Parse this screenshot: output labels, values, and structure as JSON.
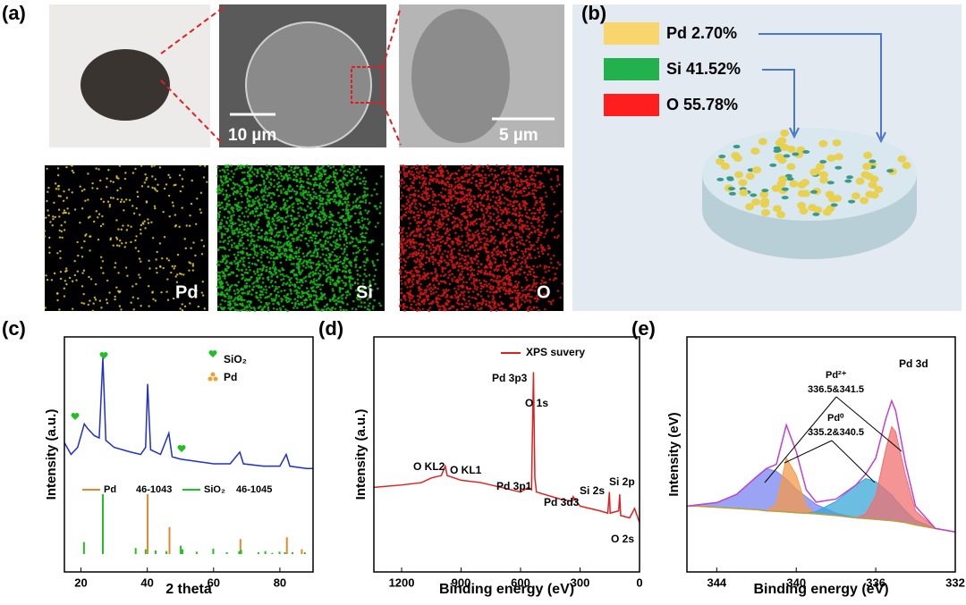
{
  "panel_a": {
    "label": "(a)",
    "scale_bars": [
      "10 µm",
      "5 µm"
    ],
    "maps": [
      "Pd",
      "Si",
      "O"
    ]
  },
  "panel_b": {
    "label": "(b)",
    "composition": [
      {
        "text": "Pd 2.70%",
        "color": "#f9d56e"
      },
      {
        "text": "Si 41.52%",
        "color": "#22b14c"
      },
      {
        "text": "O 55.78%",
        "color": "#ff1e1e"
      }
    ]
  },
  "chart_data": [
    {
      "type": "line",
      "label": "(c)",
      "ylabel": "Intensity (a.u.)",
      "xlabel": "2 theta",
      "xlim": [
        15,
        90
      ],
      "ylim": [
        0,
        100
      ],
      "xticks": [
        20,
        40,
        60,
        80
      ],
      "legend": [
        {
          "text": "SiO₂",
          "color": "#22c022"
        },
        {
          "text": "Pd",
          "color": "#f0a030"
        }
      ],
      "series": [
        {
          "color": "#1f2fd0",
          "x": [
            15,
            17,
            19,
            21,
            22,
            24,
            25.5,
            26.6,
            27.5,
            30,
            35,
            38,
            39.5,
            40.1,
            41,
            44,
            46.5,
            47.5,
            50,
            55,
            60,
            65,
            67.9,
            69,
            75,
            80,
            81.9,
            83,
            88,
            90
          ],
          "values": [
            55,
            50,
            53,
            63,
            61,
            58,
            57,
            91,
            56,
            53,
            51,
            50,
            53,
            80,
            52,
            50,
            59,
            49,
            48,
            47,
            46,
            46,
            51,
            46,
            45,
            45,
            50,
            45,
            44,
            44
          ]
        }
      ],
      "ref_ylim": [
        0,
        100
      ],
      "references": [
        {
          "name": "Pd",
          "card": "46-1043",
          "color": "#e8862a",
          "x": [
            40.1,
            46.7,
            68.1,
            82.1,
            86.6
          ],
          "values": [
            100,
            45,
            25,
            28,
            8
          ]
        },
        {
          "name": "SiO₂",
          "card": "46-1045",
          "color": "#22c022",
          "x": [
            20.9,
            26.6,
            36.5,
            39.5,
            42.5,
            45.8,
            50.1,
            50.6,
            54.9,
            59.9,
            64.0,
            67.7,
            68.3,
            73.5,
            75.6,
            77.7,
            79.9,
            81.5,
            83.8,
            87.5
          ],
          "values": [
            20,
            100,
            10,
            8,
            6,
            5,
            14,
            8,
            4,
            9,
            3,
            5,
            7,
            3,
            5,
            2,
            4,
            3,
            3,
            3
          ]
        }
      ]
    },
    {
      "type": "line",
      "label": "(d)",
      "ylabel": "Intensity (a.u.)",
      "xlabel": "Binding energy (eV)",
      "xlim": [
        1340,
        0
      ],
      "ylim": [
        0,
        100
      ],
      "xticks": [
        1200,
        900,
        600,
        300,
        0
      ],
      "series": [
        {
          "name": "XPS suvery",
          "color": "#e02020",
          "x": [
            1340,
            1200,
            1100,
            1050,
            1000,
            980,
            970,
            900,
            800,
            700,
            600,
            560,
            545,
            535,
            528,
            520,
            400,
            340,
            335,
            300,
            250,
            200,
            160,
            152,
            148,
            105,
            100,
            95,
            50,
            25,
            0
          ],
          "values": [
            36,
            37,
            38,
            40,
            41,
            45,
            41,
            39,
            38,
            36,
            34,
            36,
            35,
            85,
            40,
            34,
            31,
            30,
            32,
            28,
            27,
            26,
            25,
            34,
            25,
            26,
            33,
            24,
            23,
            27,
            21
          ]
        }
      ],
      "annotations": [
        "Pd 3p3",
        "O 1s",
        "O KL2",
        "O KL1",
        "Pd 3p1",
        "Pd 3d3",
        "Si 2s",
        "Si 2p",
        "O 2s"
      ]
    },
    {
      "type": "line",
      "label": "(e)",
      "ylabel": "Intensity (eV)",
      "xlabel": "Binding energy (eV)",
      "xlim": [
        345.5,
        332
      ],
      "ylim": [
        0,
        100
      ],
      "xticks": [
        344,
        340,
        336,
        332
      ],
      "annotations": [
        "Pd 3d",
        "Pd²⁺",
        "336.5&341.5",
        "Pd⁰",
        "335.2&340.5"
      ],
      "x": [
        345.5,
        345,
        344,
        343,
        342,
        341.5,
        341,
        340.5,
        340,
        339.5,
        339,
        338,
        337,
        336.5,
        336,
        335.5,
        335.2,
        335,
        334.5,
        334,
        333,
        332
      ],
      "background": {
        "color": "#b8a040",
        "values": [
          28,
          28,
          27.5,
          27,
          26.5,
          26,
          25.8,
          25.5,
          25.2,
          25,
          24.7,
          24,
          23,
          22.7,
          22.4,
          22,
          21.8,
          21.6,
          21,
          20,
          18.5,
          17
        ]
      },
      "components": [
        {
          "color": "#7a86f0",
          "values": [
            28,
            28.5,
            29.5,
            33,
            40.5,
            44,
            42.8,
            39.5,
            35.2,
            32,
            28.7,
            25,
            23,
            22.7,
            22.4,
            22,
            21.8,
            21.6,
            21,
            20,
            18.5,
            17
          ]
        },
        {
          "color": "#f59a4a",
          "values": [
            28,
            28,
            27.5,
            27,
            26.5,
            26,
            28.8,
            48.5,
            41.2,
            28,
            24.7,
            24,
            23,
            22.7,
            22.4,
            22,
            21.8,
            21.6,
            21,
            20,
            18.5,
            17
          ]
        },
        {
          "color": "#3aa8d8",
          "values": [
            28,
            28,
            27.5,
            27,
            26.5,
            26,
            25.8,
            25.5,
            25.2,
            25,
            25.7,
            30,
            37,
            39.7,
            38.4,
            35,
            32.8,
            30.6,
            26,
            22,
            18.5,
            17
          ]
        },
        {
          "color": "#f07070",
          "values": [
            28,
            28,
            27.5,
            27,
            26.5,
            26,
            25.8,
            25.5,
            25.2,
            25,
            24.7,
            24,
            23,
            24.7,
            32.4,
            52,
            61.8,
            59.6,
            41,
            26,
            18.5,
            17
          ]
        }
      ],
      "envelope": {
        "color": "#c040d0",
        "values": [
          28,
          28.5,
          29.5,
          33,
          40.5,
          44,
          45.8,
          62.5,
          51.2,
          35,
          29.7,
          31,
          37,
          41.7,
          48.4,
          65,
          72.8,
          68.6,
          46,
          28,
          18.5,
          17
        ]
      }
    }
  ]
}
